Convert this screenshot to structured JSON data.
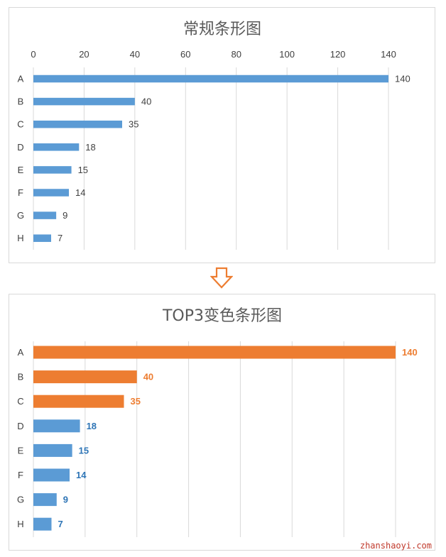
{
  "chart_data": [
    {
      "type": "bar",
      "orientation": "horizontal",
      "title": "常规条形图",
      "categories": [
        "A",
        "B",
        "C",
        "D",
        "E",
        "F",
        "G",
        "H"
      ],
      "values": [
        140,
        40,
        35,
        18,
        15,
        14,
        9,
        7
      ],
      "xlim": [
        0,
        140
      ],
      "x_ticks": [
        0,
        20,
        40,
        60,
        80,
        100,
        120,
        140
      ],
      "axis_position": "top",
      "grid": true,
      "bar_color": "#5b9bd5",
      "label_color": "#404040"
    },
    {
      "type": "bar",
      "orientation": "horizontal",
      "title": "TOP3变色条形图",
      "categories": [
        "A",
        "B",
        "C",
        "D",
        "E",
        "F",
        "G",
        "H"
      ],
      "values": [
        140,
        40,
        35,
        18,
        15,
        14,
        9,
        7
      ],
      "xlim": [
        0,
        140
      ],
      "grid": true,
      "highlight_top": 3,
      "highlight_color": "#ed7d31",
      "bar_color": "#5b9bd5",
      "highlight_label_color": "#ed7d31",
      "label_color": "#2e75b6"
    }
  ],
  "arrow": {
    "icon": "down-arrow-icon",
    "color": "#ed7d31"
  },
  "watermark": "zhanshaoyi.com"
}
